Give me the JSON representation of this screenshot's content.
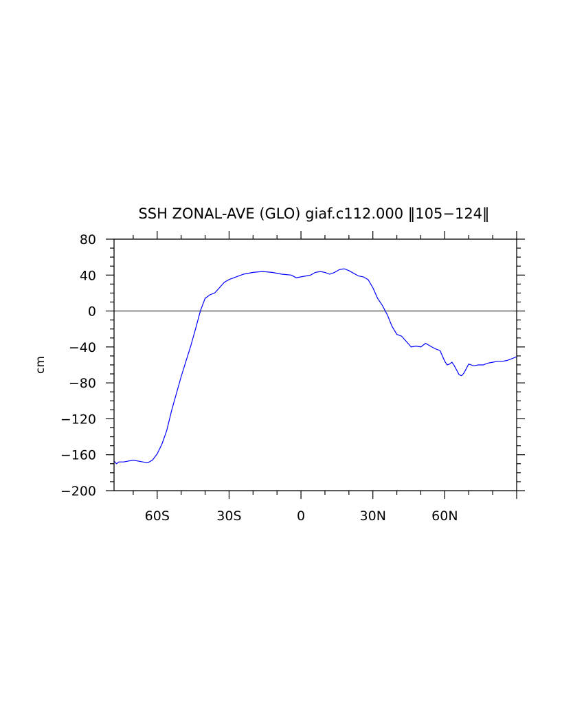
{
  "chart_data": {
    "type": "line",
    "title": "SSH ZONAL-AVE (GLO) giaf.c112.000 ‖105−124‖",
    "xlabel": "",
    "ylabel": "cm",
    "xlim": [
      -78,
      90
    ],
    "ylim": [
      -200,
      80
    ],
    "grid": false,
    "legend": "none",
    "line_color": "#0000ff",
    "zero_line": true,
    "x_ticks": [
      {
        "value": -60,
        "label": "60S"
      },
      {
        "value": -30,
        "label": "30S"
      },
      {
        "value": 0,
        "label": "0"
      },
      {
        "value": 30,
        "label": "30N"
      },
      {
        "value": 60,
        "label": "60N"
      }
    ],
    "y_ticks": [
      {
        "value": 80,
        "label": "80"
      },
      {
        "value": 40,
        "label": "40"
      },
      {
        "value": 0,
        "label": "0"
      },
      {
        "value": -40,
        "label": "−40"
      },
      {
        "value": -80,
        "label": "−80"
      },
      {
        "value": -120,
        "label": "−120"
      },
      {
        "value": -160,
        "label": "−160"
      },
      {
        "value": -200,
        "label": "−200"
      }
    ],
    "series": [
      {
        "x": [
          -78,
          -77,
          -76,
          -74,
          -70,
          -66,
          -64,
          -62,
          -60,
          -58,
          -56,
          -54,
          -52,
          -50,
          -48,
          -46,
          -44,
          -42,
          -40,
          -38,
          -36,
          -34,
          -32,
          -30,
          -28,
          -26,
          -24,
          -20,
          -16,
          -12,
          -8,
          -4,
          -2,
          0,
          2,
          4,
          6,
          8,
          10,
          12,
          14,
          16,
          18,
          20,
          22,
          24,
          26,
          28,
          30,
          32,
          34,
          36,
          38,
          40,
          42,
          44,
          46,
          48,
          50,
          52,
          54,
          56,
          58,
          60,
          61,
          62,
          63,
          64,
          65,
          66,
          67,
          68,
          69,
          70,
          72,
          74,
          76,
          78,
          80,
          82,
          84,
          86,
          88,
          90
        ],
        "y": [
          -167,
          -170,
          -168,
          -168,
          -166,
          -168,
          -169,
          -166,
          -159,
          -148,
          -133,
          -111,
          -92,
          -73,
          -56,
          -39,
          -20,
          0,
          14,
          18,
          20,
          26,
          32,
          35,
          37,
          39,
          41,
          43,
          44,
          43,
          41,
          40,
          37,
          38,
          39,
          40,
          43,
          44,
          43,
          41,
          43,
          46,
          47,
          45,
          42,
          39,
          38,
          35,
          26,
          14,
          6,
          -4,
          -17,
          -26,
          -28,
          -34,
          -40,
          -39,
          -40,
          -36,
          -39,
          -42,
          -44,
          -56,
          -60,
          -59,
          -57,
          -61,
          -66,
          -71,
          -72,
          -69,
          -64,
          -59,
          -61,
          -60,
          -60,
          -58,
          -57,
          -56,
          -56,
          -55,
          -53,
          -51
        ]
      }
    ]
  }
}
